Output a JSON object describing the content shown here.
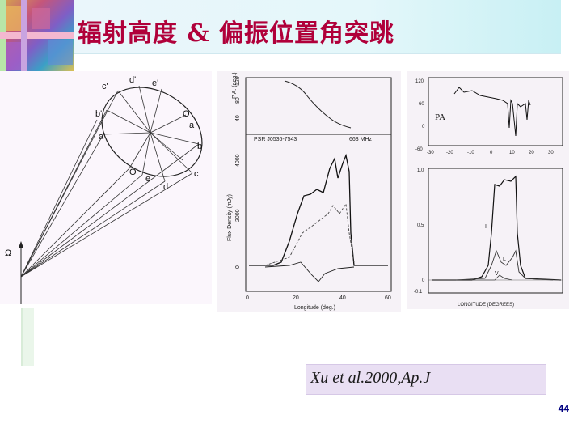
{
  "slide": {
    "title": "辐射高度 & 偏振位置角突跳",
    "citation": "Xu et al.2000,Ap.J",
    "page_number": "44"
  },
  "figure_a": {
    "point_labels": [
      "c'",
      "d'",
      "e'",
      "b'",
      "O",
      "a",
      "a'",
      "b",
      "O'",
      "e",
      "c",
      "d"
    ],
    "omega_label": "Ω"
  },
  "figure_b": {
    "ylabel_top": "P.A. (deg.)",
    "yticks_top": [
      "120",
      "80",
      "40"
    ],
    "ylabel_bottom": "Flux Density (mJy)",
    "yticks_bottom": [
      "4000",
      "2000",
      "0"
    ],
    "pulsar_label": "PSR J0536-7543",
    "freq_label": "663 MHz",
    "xticks": [
      "0",
      "20",
      "40",
      "60"
    ],
    "xlabel": "Longitude (deg.)"
  },
  "figure_c": {
    "pa_label": "PA",
    "yticks_top": [
      "120",
      "60",
      "0",
      "-60"
    ],
    "xticks_top": [
      "-30",
      "-20",
      "-10",
      "0",
      "10",
      "20",
      "30"
    ],
    "yticks_bottom": [
      "1.0",
      "0.5",
      "0",
      "-0.1"
    ],
    "curve_labels": [
      "I",
      "L",
      "V"
    ],
    "xlabel": "LONGITUDE (DEGREES)"
  },
  "colors": {
    "title": "#b0003a",
    "accent_band": "#e4f7fa",
    "citation_box": "#e9dff3",
    "page_number": "#000080"
  }
}
